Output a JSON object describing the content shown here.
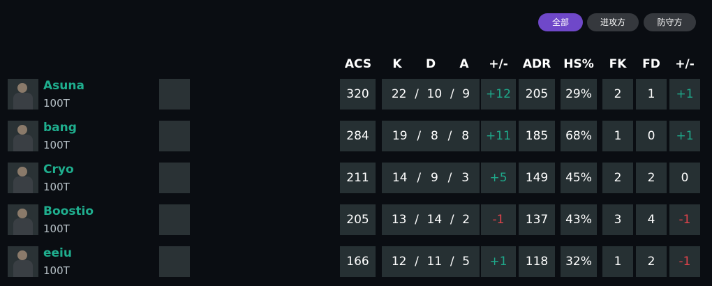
{
  "tabs": [
    {
      "label": "全部",
      "active": true
    },
    {
      "label": "进攻方",
      "active": false
    },
    {
      "label": "防守方",
      "active": false
    }
  ],
  "headers": [
    "ACS",
    "K",
    "D",
    "A",
    "+/-",
    "ADR",
    "HS%",
    "FK",
    "FD",
    "+/-"
  ],
  "colors": {
    "accent": "#6f48c9",
    "positive": "#1fa88a",
    "negative": "#e0434b",
    "name": "#1fae8e"
  },
  "players": [
    {
      "name": "Asuna",
      "team": "100T",
      "acs": "320",
      "k": "22",
      "d": "10",
      "a": "9",
      "diff": "+12",
      "adr": "205",
      "hs": "29%",
      "fk": "2",
      "fd": "1",
      "fkdiff": "+1"
    },
    {
      "name": "bang",
      "team": "100T",
      "acs": "284",
      "k": "19",
      "d": "8",
      "a": "8",
      "diff": "+11",
      "adr": "185",
      "hs": "68%",
      "fk": "1",
      "fd": "0",
      "fkdiff": "+1"
    },
    {
      "name": "Cryo",
      "team": "100T",
      "acs": "211",
      "k": "14",
      "d": "9",
      "a": "3",
      "diff": "+5",
      "adr": "149",
      "hs": "45%",
      "fk": "2",
      "fd": "2",
      "fkdiff": "0"
    },
    {
      "name": "Boostio",
      "team": "100T",
      "acs": "205",
      "k": "13",
      "d": "14",
      "a": "2",
      "diff": "-1",
      "adr": "137",
      "hs": "43%",
      "fk": "3",
      "fd": "4",
      "fkdiff": "-1"
    },
    {
      "name": "eeiu",
      "team": "100T",
      "acs": "166",
      "k": "12",
      "d": "11",
      "a": "5",
      "diff": "+1",
      "adr": "118",
      "hs": "32%",
      "fk": "1",
      "fd": "2",
      "fkdiff": "-1"
    }
  ]
}
